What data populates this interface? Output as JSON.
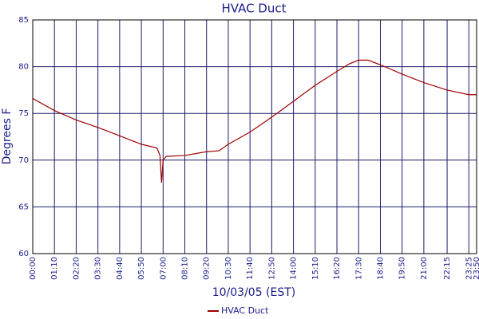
{
  "chart_data": {
    "type": "line",
    "title": "HVAC Duct",
    "x_label": "10/03/05 (EST)",
    "y_label": "Degrees F",
    "x": [
      0,
      70,
      140,
      210,
      280,
      350,
      400,
      410,
      415,
      420,
      430,
      490,
      560,
      600,
      630,
      700,
      770,
      840,
      910,
      980,
      1020,
      1050,
      1080,
      1120,
      1190,
      1260,
      1335,
      1405,
      1430
    ],
    "series": [
      {
        "name": "HVAC Duct",
        "color": "#a00000",
        "values": [
          76.6,
          75.3,
          74.3,
          73.5,
          72.6,
          71.7,
          71.3,
          70.5,
          67.6,
          70.0,
          70.4,
          70.5,
          70.9,
          71.0,
          71.7,
          73.0,
          74.6,
          76.3,
          78.0,
          79.5,
          80.3,
          80.7,
          80.7,
          80.2,
          79.2,
          78.3,
          77.5,
          77.0,
          77.0
        ]
      }
    ],
    "xlim": [
      0,
      1430
    ],
    "xticks": [
      {
        "value": 0,
        "label": "00:00"
      },
      {
        "value": 70,
        "label": "01:10"
      },
      {
        "value": 140,
        "label": "02:20"
      },
      {
        "value": 210,
        "label": "03:30"
      },
      {
        "value": 280,
        "label": "04:40"
      },
      {
        "value": 350,
        "label": "05:50"
      },
      {
        "value": 420,
        "label": "07:00"
      },
      {
        "value": 490,
        "label": "08:10"
      },
      {
        "value": 560,
        "label": "09:20"
      },
      {
        "value": 630,
        "label": "10:30"
      },
      {
        "value": 700,
        "label": "11:40"
      },
      {
        "value": 770,
        "label": "12:50"
      },
      {
        "value": 840,
        "label": "14:00"
      },
      {
        "value": 910,
        "label": "15:10"
      },
      {
        "value": 980,
        "label": "16:20"
      },
      {
        "value": 1050,
        "label": "17:30"
      },
      {
        "value": 1120,
        "label": "18:40"
      },
      {
        "value": 1190,
        "label": "19:50"
      },
      {
        "value": 1260,
        "label": "21:00"
      },
      {
        "value": 1335,
        "label": "22:15"
      },
      {
        "value": 1405,
        "label": "23:25"
      },
      {
        "value": 1430,
        "label": "23:50"
      }
    ],
    "ylim": [
      60,
      85
    ],
    "yticks": [
      60,
      65,
      70,
      75,
      80,
      85
    ],
    "grid": true
  }
}
